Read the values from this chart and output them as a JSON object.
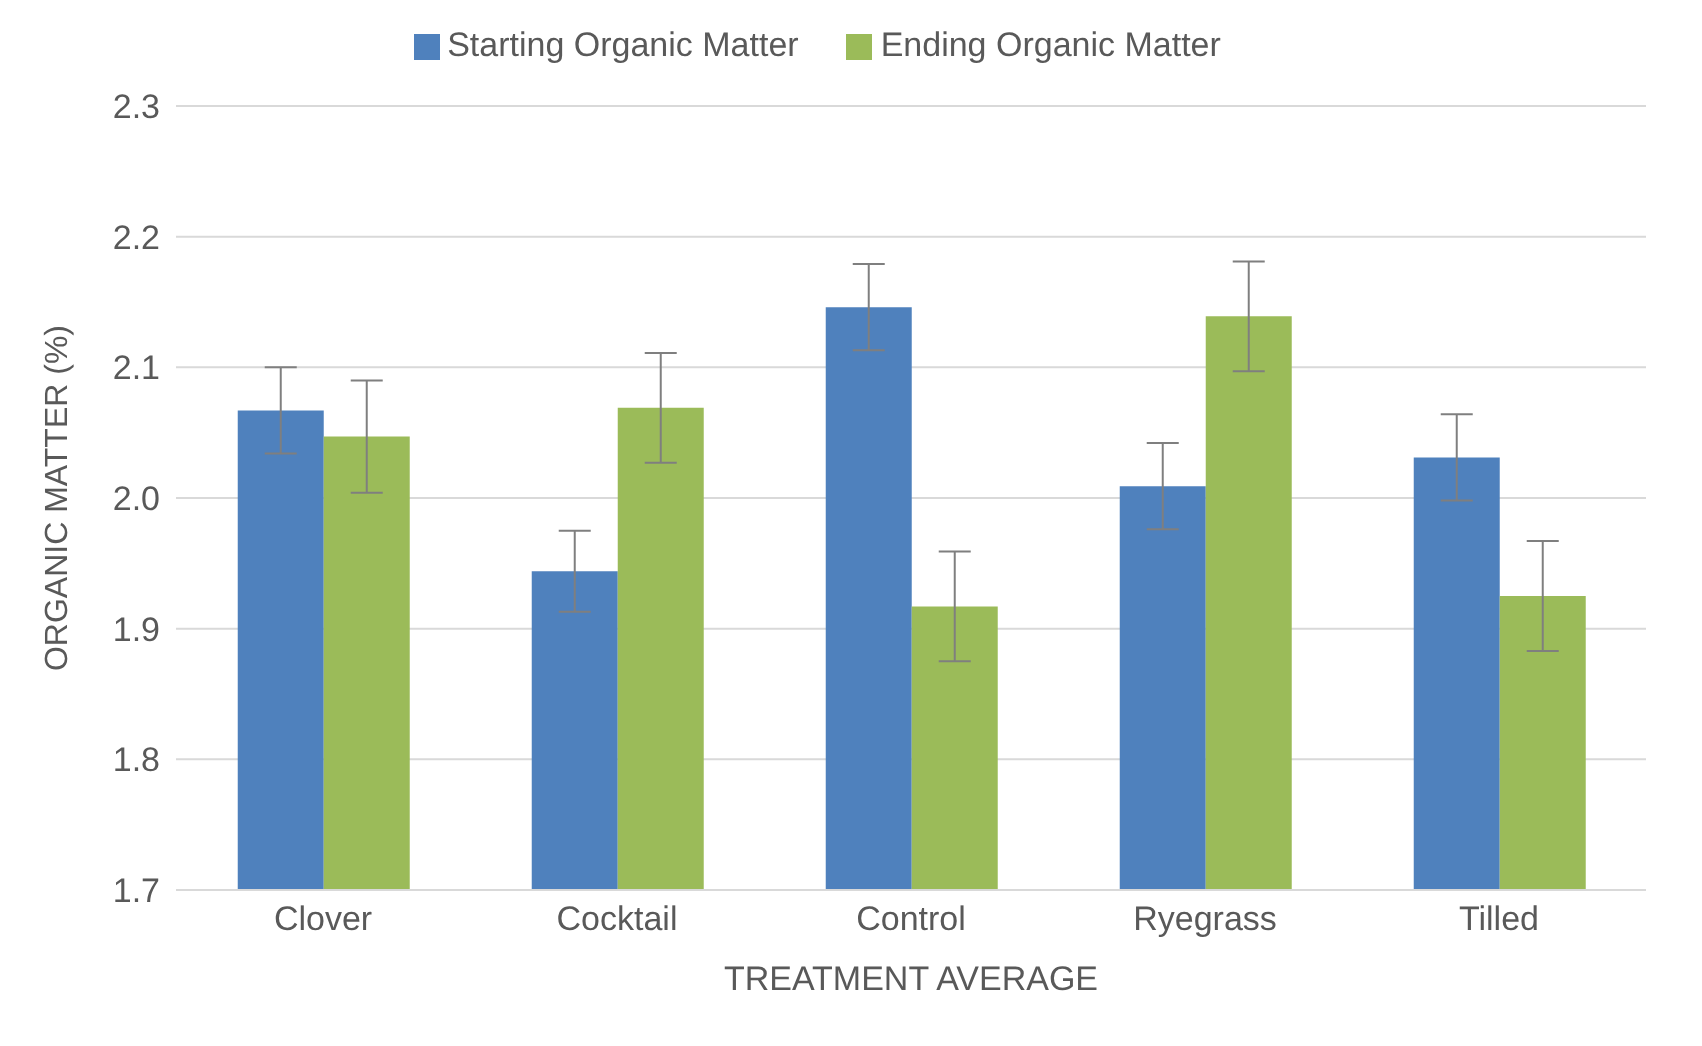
{
  "chart_data": {
    "type": "bar",
    "xlabel": "TREATMENT AVERAGE",
    "ylabel": "ORGANIC MATTER (%)",
    "categories": [
      "Clover",
      "Cocktail",
      "Control",
      "Ryegrass",
      "Tilled"
    ],
    "series": [
      {
        "name": "Starting Organic Matter",
        "color": "#4f81bd",
        "values": [
          2.067,
          1.944,
          2.146,
          2.009,
          2.031
        ],
        "errors": [
          0.033,
          0.031,
          0.033,
          0.033,
          0.033
        ]
      },
      {
        "name": "Ending Organic Matter",
        "color": "#9bbb59",
        "values": [
          2.047,
          2.069,
          1.917,
          2.139,
          1.925
        ],
        "errors": [
          0.043,
          0.042,
          0.042,
          0.042,
          0.042
        ]
      }
    ],
    "ylim": [
      1.7,
      2.3
    ],
    "yticks": [
      {
        "value": 1.7,
        "label": "1.7"
      },
      {
        "value": 1.8,
        "label": "1.8"
      },
      {
        "value": 1.9,
        "label": "1.9"
      },
      {
        "value": 2,
        "label": "2.0"
      },
      {
        "value": 2.1,
        "label": "2.1"
      },
      {
        "value": 2.2,
        "label": "2.2"
      },
      {
        "value": 2.3,
        "label": "2.3"
      }
    ],
    "grid": "y",
    "legend": "top"
  }
}
